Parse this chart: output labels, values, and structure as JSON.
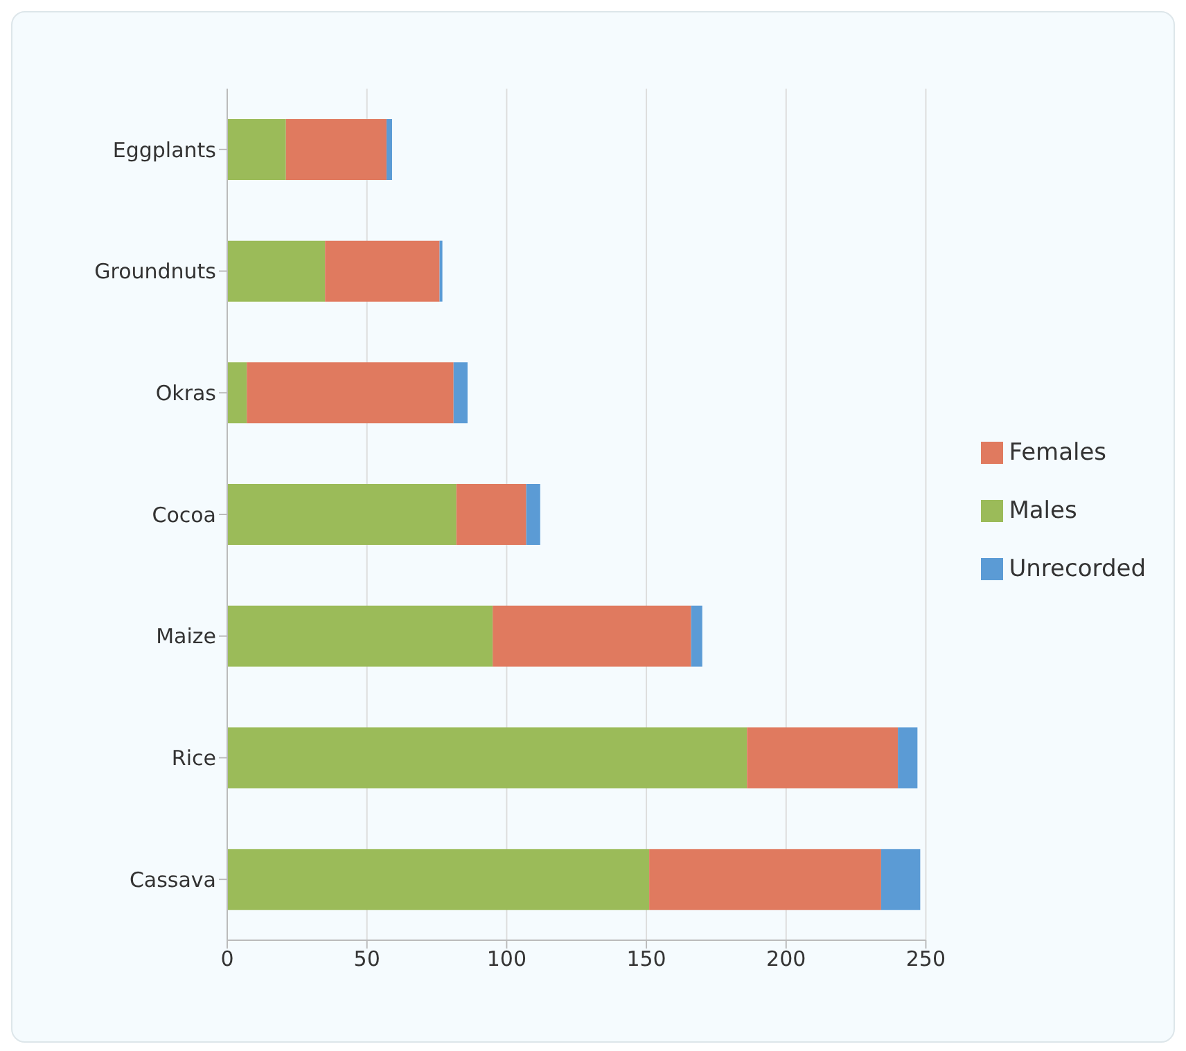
{
  "chart_data": {
    "type": "bar",
    "orientation": "horizontal",
    "stacked": true,
    "categories": [
      "Eggplants",
      "Groundnuts",
      "Okras",
      "Cocoa",
      "Maize",
      "Rice",
      "Cassava"
    ],
    "series": [
      {
        "name": "Males",
        "color": "#9bbb59",
        "values": [
          21,
          35,
          7,
          82,
          95,
          186,
          151
        ]
      },
      {
        "name": "Females",
        "color": "#e07a5f",
        "values": [
          36,
          41,
          74,
          25,
          71,
          54,
          83
        ]
      },
      {
        "name": "Unrecorded",
        "color": "#5b9bd5",
        "values": [
          2,
          1,
          5,
          5,
          4,
          7,
          14
        ]
      }
    ],
    "xlim": [
      0,
      250
    ],
    "xticks": [
      0,
      50,
      100,
      150,
      200,
      250
    ],
    "grid": "x",
    "legend": "right"
  }
}
